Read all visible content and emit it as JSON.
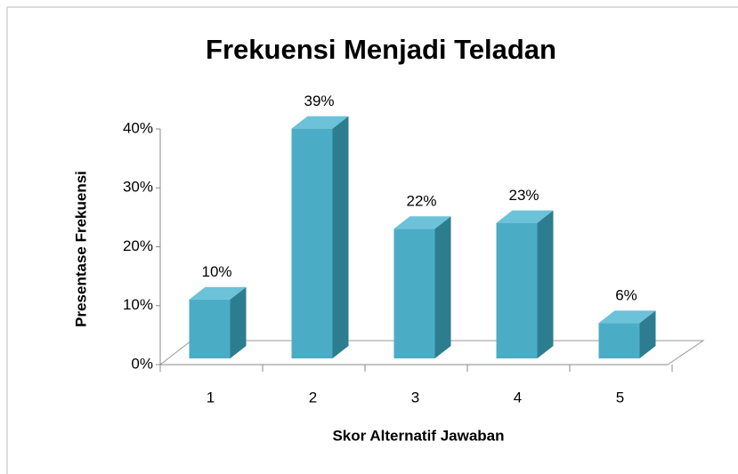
{
  "chart_data": {
    "type": "bar3d",
    "title": "Frekuensi Menjadi Teladan",
    "x_label": "Skor Alternatif Jawaban",
    "y_label": "Presentase Frekuensi",
    "categories": [
      "1",
      "2",
      "3",
      "4",
      "5"
    ],
    "values": [
      10,
      39,
      22,
      23,
      6
    ],
    "value_labels": [
      "10%",
      "39%",
      "22%",
      "23%",
      "6%"
    ],
    "color": "#4bacc6",
    "ylim": [
      0,
      40
    ],
    "yticks": [
      {
        "value": 0,
        "label": "0%"
      },
      {
        "value": 10,
        "label": "10%"
      },
      {
        "value": 20,
        "label": "20%"
      },
      {
        "value": 30,
        "label": "30%"
      },
      {
        "value": 40,
        "label": "40%"
      }
    ],
    "grid": false
  }
}
